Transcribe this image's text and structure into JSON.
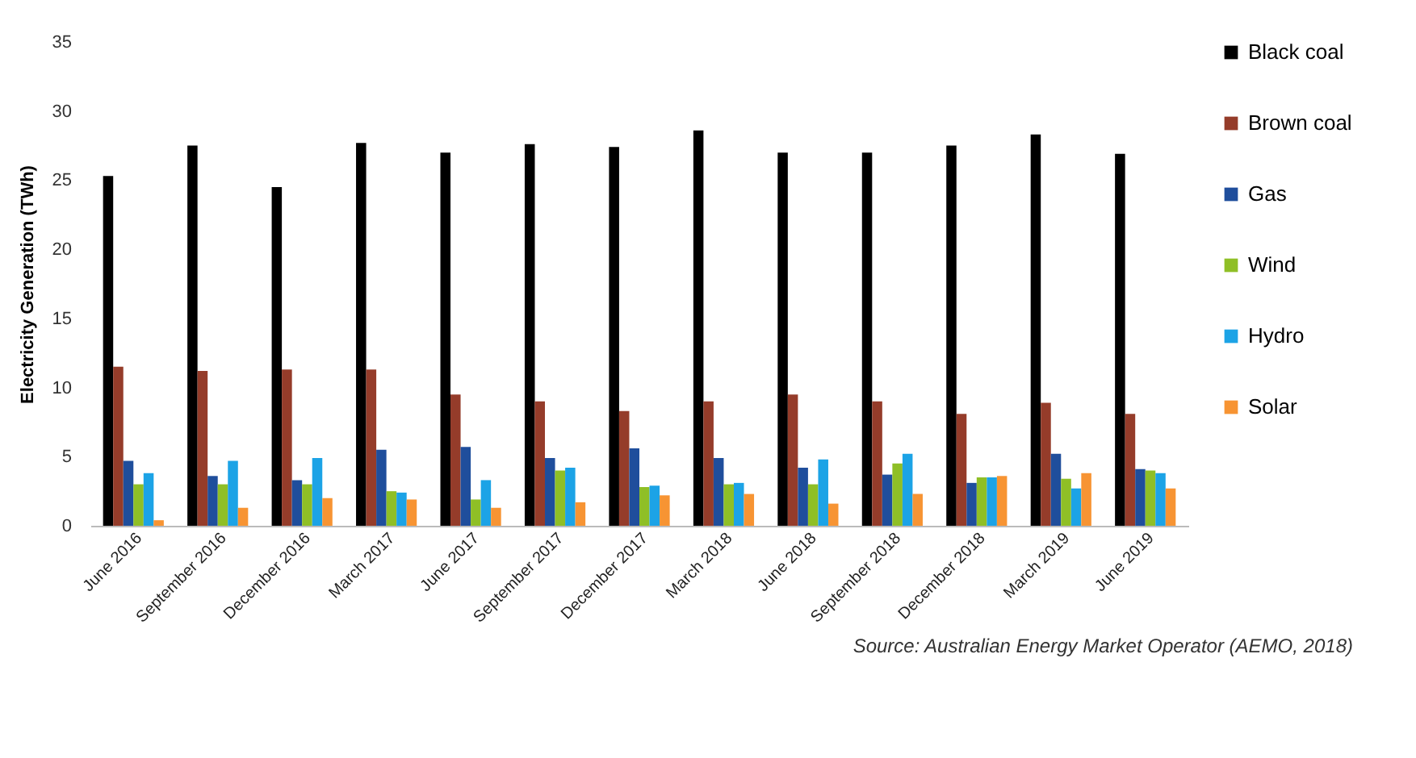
{
  "chart_data": {
    "type": "bar",
    "ylabel": "Electricity Generation (TWh)",
    "categories": [
      "June 2016",
      "September 2016",
      "December 2016",
      "March 2017",
      "June 2017",
      "September 2017",
      "December 2017",
      "March 2018",
      "June 2018",
      "September 2018",
      "December 2018",
      "March 2019",
      "June 2019"
    ],
    "series": [
      {
        "name": "Black coal",
        "color": "#000000",
        "values": [
          25.3,
          27.5,
          24.5,
          27.7,
          27.0,
          27.6,
          27.4,
          28.6,
          27.0,
          27.0,
          27.5,
          28.3,
          26.9
        ]
      },
      {
        "name": "Brown coal",
        "color": "#953c2a",
        "values": [
          11.5,
          11.2,
          11.3,
          11.3,
          9.5,
          9.0,
          8.3,
          9.0,
          9.5,
          9.0,
          8.1,
          8.9,
          8.1
        ]
      },
      {
        "name": "Gas",
        "color": "#1f4e9c",
        "values": [
          4.7,
          3.6,
          3.3,
          5.5,
          5.7,
          4.9,
          5.6,
          4.9,
          4.2,
          3.7,
          3.1,
          5.2,
          4.1
        ]
      },
      {
        "name": "Wind",
        "color": "#8fbf26",
        "values": [
          3.0,
          3.0,
          3.0,
          2.5,
          1.9,
          4.0,
          2.8,
          3.0,
          3.0,
          4.5,
          3.5,
          3.4,
          4.0
        ]
      },
      {
        "name": "Hydro",
        "color": "#1ca3e6",
        "values": [
          3.8,
          4.7,
          4.9,
          2.4,
          3.3,
          4.2,
          2.9,
          3.1,
          4.8,
          5.2,
          3.5,
          2.7,
          3.8
        ]
      },
      {
        "name": "Solar",
        "color": "#f79433",
        "values": [
          0.4,
          1.3,
          2.0,
          1.9,
          1.3,
          1.7,
          2.2,
          2.3,
          1.6,
          2.3,
          3.6,
          3.8,
          2.7
        ]
      }
    ],
    "ylim": [
      0,
      35
    ],
    "yticks": [
      0,
      5,
      10,
      15,
      20,
      25,
      30,
      35
    ],
    "grid": false,
    "legend": "right",
    "annotations": [
      "Source: Australian Energy Market Operator (AEMO, 2018)"
    ]
  }
}
